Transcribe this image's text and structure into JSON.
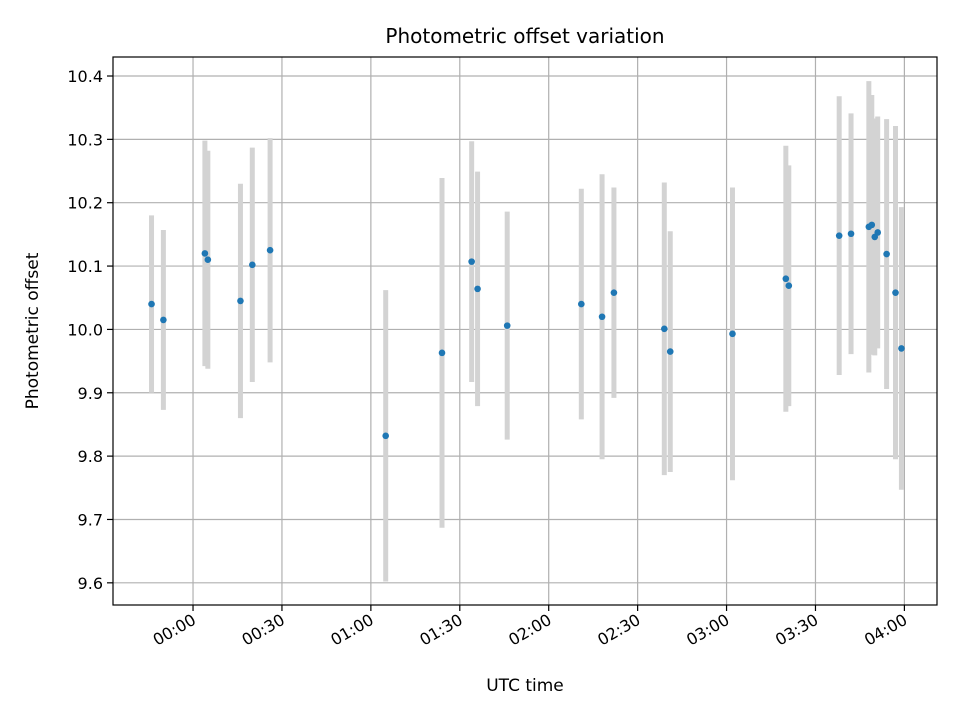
{
  "chart_data": {
    "type": "scatter",
    "title": "Photometric offset variation",
    "xlabel": "UTC time",
    "ylabel": "Photometric offset",
    "x_unit": "HH:MM",
    "xlim": [
      "-00:27",
      "04:11"
    ],
    "ylim": [
      9.565,
      10.43
    ],
    "x_ticks": [
      "00:00",
      "00:30",
      "01:00",
      "01:30",
      "02:00",
      "02:30",
      "03:00",
      "03:30",
      "04:00"
    ],
    "y_ticks": [
      9.6,
      9.7,
      9.8,
      9.9,
      10.0,
      10.1,
      10.2,
      10.3,
      10.4
    ],
    "y_tick_labels": [
      "9.6",
      "9.7",
      "9.8",
      "9.9",
      "10.0",
      "10.1",
      "10.2",
      "10.3",
      "10.4"
    ],
    "grid": true,
    "point_color": "#1f77b4",
    "errorbar_color": "#d3d3d3",
    "points": [
      {
        "time": "23:46",
        "y": 10.04,
        "err": 0.14
      },
      {
        "time": "23:50",
        "y": 10.015,
        "err": 0.142
      },
      {
        "time": "00:04",
        "y": 10.12,
        "err": 0.178
      },
      {
        "time": "00:05",
        "y": 10.11,
        "err": 0.172
      },
      {
        "time": "00:16",
        "y": 10.045,
        "err": 0.185
      },
      {
        "time": "00:20",
        "y": 10.102,
        "err": 0.185
      },
      {
        "time": "00:26",
        "y": 10.125,
        "err": 0.177
      },
      {
        "time": "01:05",
        "y": 9.832,
        "err": 0.23
      },
      {
        "time": "01:24",
        "y": 9.963,
        "err": 0.276
      },
      {
        "time": "01:34",
        "y": 10.107,
        "err": 0.19
      },
      {
        "time": "01:36",
        "y": 10.064,
        "err": 0.185
      },
      {
        "time": "01:46",
        "y": 10.006,
        "err": 0.18
      },
      {
        "time": "02:11",
        "y": 10.04,
        "err": 0.182
      },
      {
        "time": "02:18",
        "y": 10.02,
        "err": 0.225
      },
      {
        "time": "02:22",
        "y": 10.058,
        "err": 0.166
      },
      {
        "time": "02:39",
        "y": 10.001,
        "err": 0.231
      },
      {
        "time": "02:41",
        "y": 9.965,
        "err": 0.19
      },
      {
        "time": "03:02",
        "y": 9.993,
        "err": 0.231
      },
      {
        "time": "03:20",
        "y": 10.08,
        "err": 0.21
      },
      {
        "time": "03:21",
        "y": 10.069,
        "err": 0.19
      },
      {
        "time": "03:38",
        "y": 10.148,
        "err": 0.22
      },
      {
        "time": "03:42",
        "y": 10.151,
        "err": 0.19
      },
      {
        "time": "03:48",
        "y": 10.162,
        "err": 0.23
      },
      {
        "time": "03:49",
        "y": 10.165,
        "err": 0.205
      },
      {
        "time": "03:50",
        "y": 10.146,
        "err": 0.187
      },
      {
        "time": "03:51",
        "y": 10.153,
        "err": 0.183
      },
      {
        "time": "03:54",
        "y": 10.119,
        "err": 0.213
      },
      {
        "time": "03:57",
        "y": 10.058,
        "err": 0.263
      },
      {
        "time": "03:59",
        "y": 9.97,
        "err": 0.223
      }
    ]
  }
}
